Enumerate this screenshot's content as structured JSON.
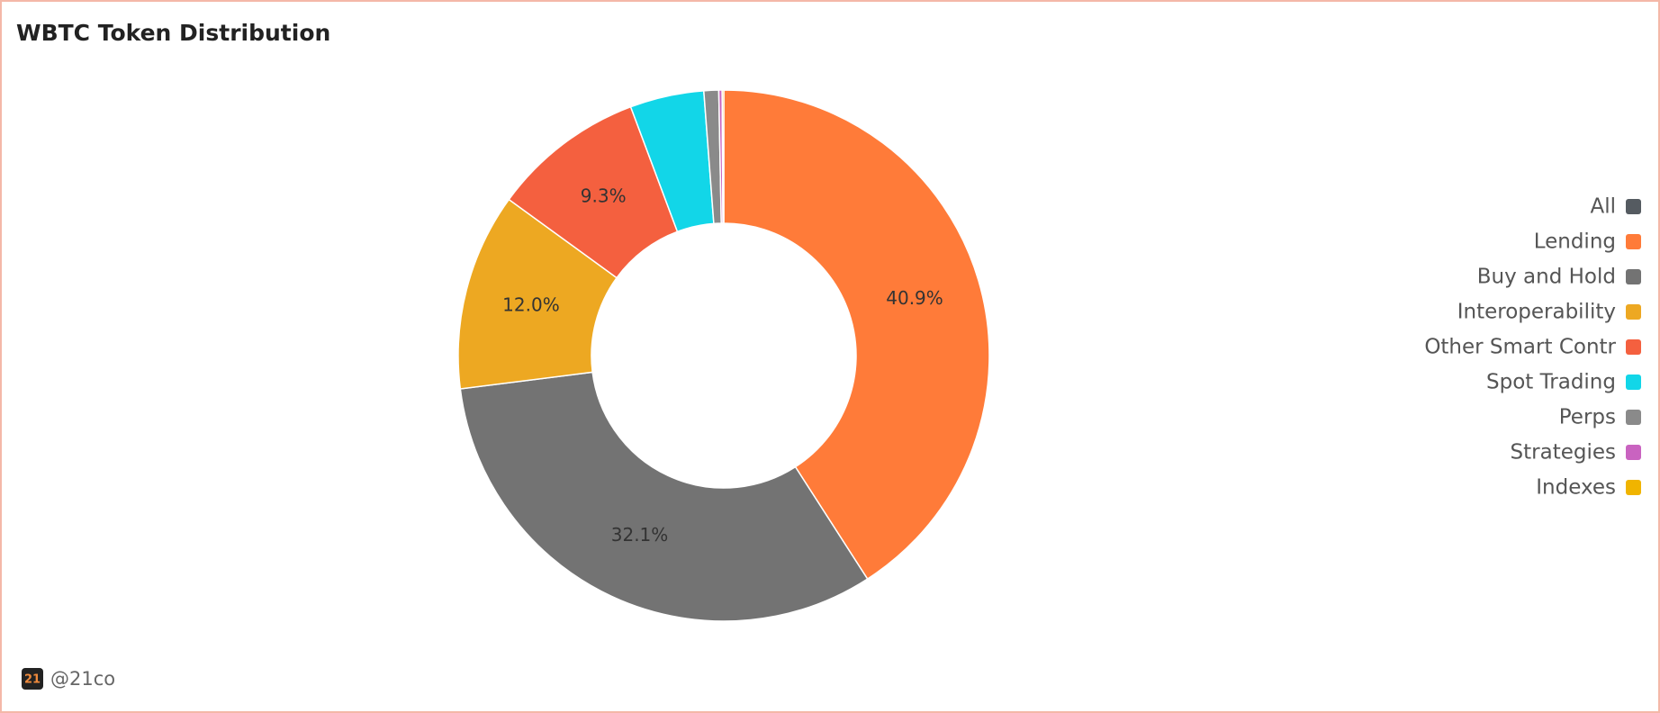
{
  "chart_data": {
    "type": "donut",
    "title": "WBTC Token Distribution",
    "categories": [
      "All",
      "Lending",
      "Buy and Hold",
      "Interoperability",
      "Other Smart Contr",
      "Spot Trading",
      "Perps",
      "Strategies",
      "Indexes"
    ],
    "values": [
      0,
      40.9,
      32.1,
      12.0,
      9.3,
      4.5,
      0.9,
      0.2,
      0.1
    ],
    "value_labels": [
      null,
      "40.9%",
      "32.1%",
      "12.0%",
      "9.3%",
      null,
      null,
      null,
      null
    ],
    "colors": [
      "#555b61",
      "#ff7b39",
      "#737373",
      "#eda822",
      "#f4603f",
      "#12d6e8",
      "#8a8a8a",
      "#c963c0",
      "#f0b400"
    ],
    "legend": "right"
  },
  "brand": {
    "logo": "21",
    "handle": "@21co"
  }
}
